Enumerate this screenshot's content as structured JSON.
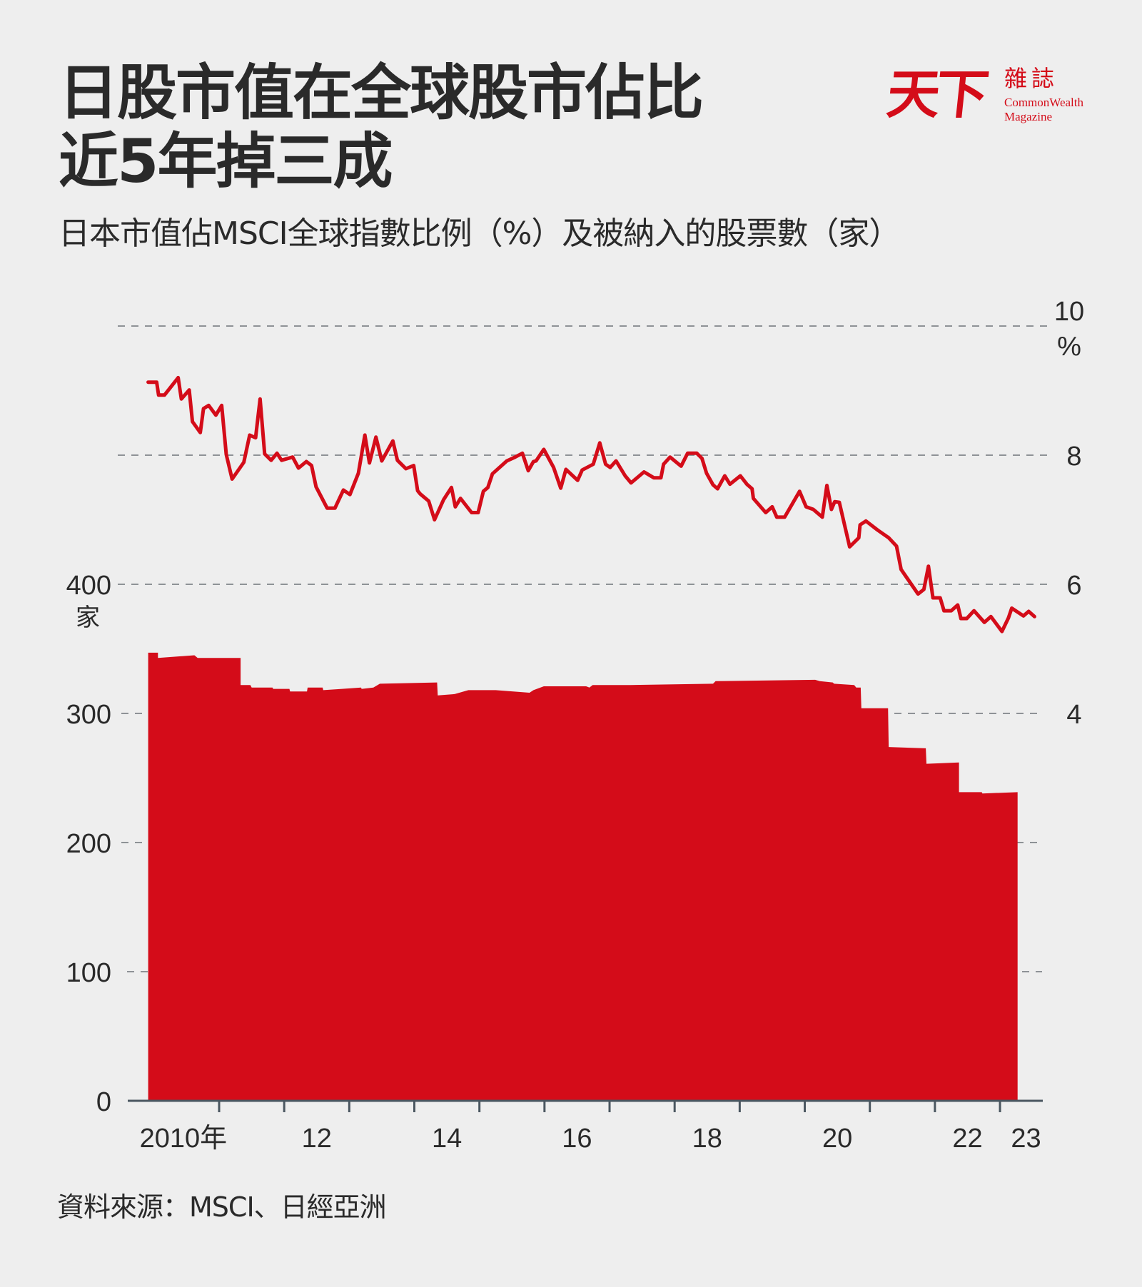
{
  "header": {
    "title_line1": "日股市值在全球股市佔比",
    "title_line2": "近5年掉三成",
    "subtitle": "日本市值佔MSCI全球指數比例（%）及被納入的股票數（家）"
  },
  "logo": {
    "brand_zh_big": "天下",
    "brand_zh_small": "雜誌",
    "brand_en_line1": "CommonWealth",
    "brand_en_line2": "Magazine",
    "color": "#d40c19"
  },
  "footer": {
    "source": "資料來源：MSCI、日經亞洲"
  },
  "colors": {
    "accent": "#d40c19",
    "grid": "#8e9296",
    "axis": "#4a5660",
    "text": "#2a2a2a",
    "background": "#eeeeee"
  },
  "chart_data": {
    "type": "line+area",
    "title": "日股市值在全球股市佔比近5年掉三成",
    "subtitle": "日本市值佔MSCI全球指數比例（%）及被納入的股票數（家）",
    "xlabel": "",
    "x_ticks": [
      "2010年",
      "12",
      "14",
      "16",
      "18",
      "20",
      "22",
      "23"
    ],
    "x_tick_years": [
      2010.45,
      2012.5,
      2014.5,
      2016.5,
      2018.5,
      2020.5,
      2022.5,
      2023.4
    ],
    "x_range": [
      2009.9,
      2023.6
    ],
    "left_axis": {
      "label": "家",
      "ticks": [
        "0",
        "100",
        "200",
        "300",
        "400"
      ],
      "tick_values": [
        0,
        100,
        200,
        300,
        400
      ],
      "ylim": [
        0,
        400
      ]
    },
    "right_axis": {
      "label": "%",
      "ticks": [
        "4",
        "6",
        "8",
        "10"
      ],
      "tick_values": [
        4,
        6,
        8,
        10
      ],
      "ylim": [
        4,
        10
      ]
    },
    "grid": true,
    "series": [
      {
        "name": "日本市值佔MSCI全球指數比例（%）",
        "type": "line",
        "axis": "right",
        "color": "#d40c19",
        "points": [
          [
            2009.91,
            9.13
          ],
          [
            2010.04,
            9.13
          ],
          [
            2010.07,
            8.93
          ],
          [
            2010.16,
            8.93
          ],
          [
            2010.37,
            9.2
          ],
          [
            2010.42,
            8.87
          ],
          [
            2010.54,
            9.01
          ],
          [
            2010.59,
            8.52
          ],
          [
            2010.71,
            8.35
          ],
          [
            2010.76,
            8.72
          ],
          [
            2010.84,
            8.77
          ],
          [
            2010.95,
            8.62
          ],
          [
            2011.04,
            8.77
          ],
          [
            2011.11,
            8.01
          ],
          [
            2011.2,
            7.63
          ],
          [
            2011.38,
            7.89
          ],
          [
            2011.47,
            8.31
          ],
          [
            2011.56,
            8.27
          ],
          [
            2011.63,
            8.87
          ],
          [
            2011.7,
            8.02
          ],
          [
            2011.8,
            7.92
          ],
          [
            2011.89,
            8.03
          ],
          [
            2011.96,
            7.92
          ],
          [
            2012.13,
            7.97
          ],
          [
            2012.22,
            7.8
          ],
          [
            2012.34,
            7.9
          ],
          [
            2012.42,
            7.84
          ],
          [
            2012.49,
            7.51
          ],
          [
            2012.66,
            7.18
          ],
          [
            2012.78,
            7.18
          ],
          [
            2012.91,
            7.46
          ],
          [
            2013.01,
            7.39
          ],
          [
            2013.14,
            7.72
          ],
          [
            2013.24,
            8.31
          ],
          [
            2013.31,
            7.88
          ],
          [
            2013.41,
            8.28
          ],
          [
            2013.5,
            7.91
          ],
          [
            2013.67,
            8.22
          ],
          [
            2013.74,
            7.92
          ],
          [
            2013.87,
            7.79
          ],
          [
            2013.99,
            7.84
          ],
          [
            2014.05,
            7.45
          ],
          [
            2014.09,
            7.4
          ],
          [
            2014.22,
            7.29
          ],
          [
            2014.31,
            7.0
          ],
          [
            2014.45,
            7.31
          ],
          [
            2014.57,
            7.5
          ],
          [
            2014.63,
            7.2
          ],
          [
            2014.71,
            7.33
          ],
          [
            2014.88,
            7.11
          ],
          [
            2014.98,
            7.11
          ],
          [
            2015.06,
            7.44
          ],
          [
            2015.13,
            7.5
          ],
          [
            2015.2,
            7.71
          ],
          [
            2015.42,
            7.91
          ],
          [
            2015.55,
            7.97
          ],
          [
            2015.66,
            8.03
          ],
          [
            2015.75,
            7.76
          ],
          [
            2015.83,
            7.9
          ],
          [
            2015.87,
            7.91
          ],
          [
            2015.99,
            8.09
          ],
          [
            2016.14,
            7.81
          ],
          [
            2016.25,
            7.49
          ],
          [
            2016.33,
            7.78
          ],
          [
            2016.51,
            7.61
          ],
          [
            2016.58,
            7.77
          ],
          [
            2016.75,
            7.86
          ],
          [
            2016.85,
            8.19
          ],
          [
            2016.94,
            7.86
          ],
          [
            2017.01,
            7.81
          ],
          [
            2017.1,
            7.91
          ],
          [
            2017.24,
            7.68
          ],
          [
            2017.33,
            7.57
          ],
          [
            2017.53,
            7.74
          ],
          [
            2017.68,
            7.65
          ],
          [
            2017.79,
            7.65
          ],
          [
            2017.83,
            7.86
          ],
          [
            2017.93,
            7.97
          ],
          [
            2018.1,
            7.83
          ],
          [
            2018.2,
            8.03
          ],
          [
            2018.34,
            8.03
          ],
          [
            2018.42,
            7.95
          ],
          [
            2018.49,
            7.72
          ],
          [
            2018.59,
            7.54
          ],
          [
            2018.66,
            7.48
          ],
          [
            2018.77,
            7.68
          ],
          [
            2018.85,
            7.55
          ],
          [
            2019.01,
            7.68
          ],
          [
            2019.11,
            7.55
          ],
          [
            2019.19,
            7.48
          ],
          [
            2019.21,
            7.33
          ],
          [
            2019.4,
            7.11
          ],
          [
            2019.5,
            7.2
          ],
          [
            2019.57,
            7.04
          ],
          [
            2019.69,
            7.04
          ],
          [
            2019.92,
            7.44
          ],
          [
            2020.02,
            7.2
          ],
          [
            2020.13,
            7.16
          ],
          [
            2020.27,
            7.04
          ],
          [
            2020.34,
            7.53
          ],
          [
            2020.41,
            7.16
          ],
          [
            2020.46,
            7.28
          ],
          [
            2020.53,
            7.27
          ],
          [
            2020.69,
            6.58
          ],
          [
            2020.83,
            6.72
          ],
          [
            2020.85,
            6.92
          ],
          [
            2020.94,
            6.98
          ],
          [
            2021.12,
            6.84
          ],
          [
            2021.29,
            6.72
          ],
          [
            2021.41,
            6.59
          ],
          [
            2021.48,
            6.23
          ],
          [
            2021.74,
            5.85
          ],
          [
            2021.83,
            5.92
          ],
          [
            2021.9,
            6.28
          ],
          [
            2021.97,
            5.79
          ],
          [
            2022.08,
            5.79
          ],
          [
            2022.14,
            5.59
          ],
          [
            2022.25,
            5.59
          ],
          [
            2022.35,
            5.68
          ],
          [
            2022.4,
            5.47
          ],
          [
            2022.49,
            5.47
          ],
          [
            2022.6,
            5.59
          ],
          [
            2022.76,
            5.41
          ],
          [
            2022.86,
            5.5
          ],
          [
            2023.03,
            5.27
          ],
          [
            2023.13,
            5.48
          ],
          [
            2023.18,
            5.63
          ],
          [
            2023.36,
            5.51
          ],
          [
            2023.44,
            5.58
          ],
          [
            2023.53,
            5.5
          ]
        ]
      },
      {
        "name": "被納入的股票數（家）",
        "type": "area",
        "axis": "left",
        "color": "#d40c19",
        "points": [
          [
            2009.91,
            347
          ],
          [
            2010.06,
            347
          ],
          [
            2010.06,
            343
          ],
          [
            2010.62,
            345
          ],
          [
            2010.67,
            343
          ],
          [
            2011.33,
            343
          ],
          [
            2011.33,
            322
          ],
          [
            2011.48,
            322
          ],
          [
            2011.5,
            320
          ],
          [
            2011.82,
            320
          ],
          [
            2011.83,
            319
          ],
          [
            2012.08,
            319
          ],
          [
            2012.09,
            317
          ],
          [
            2012.35,
            317
          ],
          [
            2012.36,
            320
          ],
          [
            2012.59,
            320
          ],
          [
            2012.6,
            318
          ],
          [
            2012.89,
            319
          ],
          [
            2013.18,
            320
          ],
          [
            2013.19,
            319
          ],
          [
            2013.37,
            320
          ],
          [
            2013.47,
            323
          ],
          [
            2014.35,
            324
          ],
          [
            2014.36,
            314
          ],
          [
            2014.62,
            315
          ],
          [
            2014.83,
            318
          ],
          [
            2015.25,
            318
          ],
          [
            2015.77,
            316
          ],
          [
            2015.83,
            318
          ],
          [
            2015.99,
            321
          ],
          [
            2016.64,
            321
          ],
          [
            2016.69,
            320
          ],
          [
            2016.74,
            322
          ],
          [
            2017.32,
            322
          ],
          [
            2018.59,
            323
          ],
          [
            2018.63,
            325
          ],
          [
            2020.16,
            326
          ],
          [
            2020.23,
            325
          ],
          [
            2020.43,
            324
          ],
          [
            2020.45,
            323
          ],
          [
            2020.76,
            322
          ],
          [
            2020.79,
            320
          ],
          [
            2020.86,
            320
          ],
          [
            2020.87,
            304
          ],
          [
            2021.28,
            304
          ],
          [
            2021.29,
            274
          ],
          [
            2021.86,
            273
          ],
          [
            2021.87,
            261
          ],
          [
            2022.37,
            262
          ],
          [
            2022.37,
            239
          ],
          [
            2022.72,
            239
          ],
          [
            2022.73,
            238
          ],
          [
            2023.27,
            239
          ]
        ]
      }
    ]
  }
}
